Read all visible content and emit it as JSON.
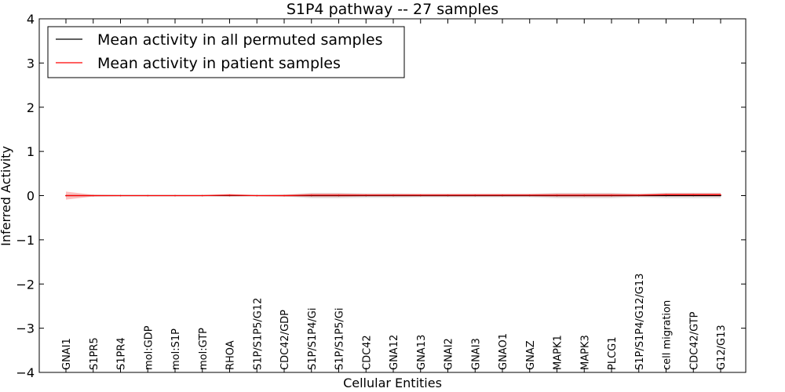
{
  "chart_data": {
    "type": "line",
    "title": "S1P4 pathway -- 27 samples",
    "xlabel": "Cellular Entities",
    "ylabel": "Inferred Activity",
    "ylim": [
      -4,
      4
    ],
    "yticks": [
      4,
      3,
      2,
      1,
      0,
      -1,
      -2,
      -3,
      -4
    ],
    "ytick_labels": [
      "4",
      "3",
      "2",
      "1",
      "0",
      "−1",
      "−2",
      "−3",
      "−4"
    ],
    "grid": false,
    "legend_position": "top-left",
    "categories": [
      "GNAI1",
      "S1PR5",
      "S1PR4",
      "mol:GDP",
      "mol:S1P",
      "mol:GTP",
      "RHOA",
      "S1P/S1P5/G12",
      "CDC42/GDP",
      "S1P/S1P4/Gi",
      "S1P/S1P5/Gi",
      "CDC42",
      "GNA12",
      "GNA13",
      "GNAI2",
      "GNAI3",
      "GNAO1",
      "GNAZ",
      "MAPK1",
      "MAPK3",
      "PLCG1",
      "S1P/S1P4/G12/G13",
      "cell migration",
      "CDC42/GTP",
      "G12/G13"
    ],
    "series": [
      {
        "name": "Mean activity in all permuted samples",
        "color": "#000000",
        "values": [
          0,
          0,
          0,
          0,
          0,
          0,
          0,
          0,
          0,
          0,
          0,
          0,
          0,
          0,
          0,
          0,
          0,
          0,
          0,
          0,
          0,
          0,
          0,
          0,
          0
        ],
        "band": [
          0.01,
          0.01,
          0.01,
          0.01,
          0.01,
          0.01,
          0.01,
          0.01,
          0.02,
          0.06,
          0.06,
          0.05,
          0.05,
          0.04,
          0.04,
          0.04,
          0.04,
          0.04,
          0.06,
          0.06,
          0.06,
          0.04,
          0.06,
          0.06,
          0.06
        ]
      },
      {
        "name": "Mean activity in patient samples",
        "color": "#ff0000",
        "values": [
          0.0,
          0.0,
          0.0,
          0.0,
          0.0,
          0.0,
          0.01,
          0.0,
          0.0,
          0.01,
          0.01,
          0.01,
          0.01,
          0.01,
          0.01,
          0.01,
          0.01,
          0.01,
          0.01,
          0.01,
          0.01,
          0.01,
          0.02,
          0.02,
          0.02
        ],
        "band": [
          0.09,
          0.02,
          0.01,
          0.01,
          0.01,
          0.01,
          0.03,
          0.01,
          0.02,
          0.04,
          0.04,
          0.03,
          0.03,
          0.03,
          0.03,
          0.03,
          0.03,
          0.03,
          0.04,
          0.04,
          0.04,
          0.03,
          0.04,
          0.04,
          0.04
        ]
      }
    ]
  }
}
